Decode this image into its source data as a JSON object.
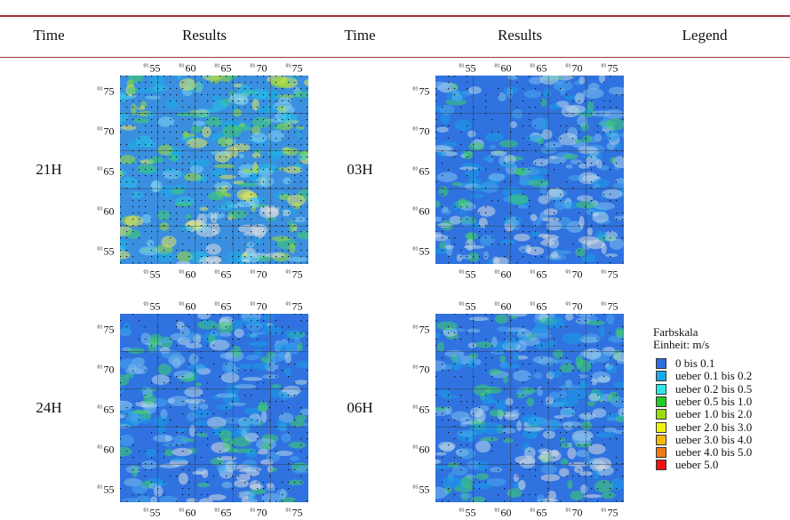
{
  "header": [
    "Time",
    "Results",
    "Time",
    "Results",
    "Legend"
  ],
  "rows": [
    {
      "left_time": "21H",
      "right_time": "03H"
    },
    {
      "left_time": "24H",
      "right_time": "06H"
    }
  ],
  "map_ticks": {
    "prefix": "01",
    "x": [
      "55",
      "60",
      "65",
      "70",
      "75"
    ],
    "y": [
      "75",
      "70",
      "65",
      "60",
      "55"
    ]
  },
  "legend": {
    "title": "Farbskala",
    "unit": "Einheit: m/s",
    "entries": [
      {
        "label": "0 bis 0.1",
        "color": "#2f6fe0"
      },
      {
        "label": "ueber 0.1 bis 0.2",
        "color": "#1aa8e8"
      },
      {
        "label": "ueber 0.2 bis 0.5",
        "color": "#2ee8e8"
      },
      {
        "label": "ueber 0.5 bis 1.0",
        "color": "#22cc22"
      },
      {
        "label": "ueber 1.0 bis 2.0",
        "color": "#99dd11"
      },
      {
        "label": "ueber 2.0 bis 3.0",
        "color": "#f2f211"
      },
      {
        "label": "ueber 3.0 bis 4.0",
        "color": "#f5b800"
      },
      {
        "label": "ueber 4.0 bis 5.0",
        "color": "#f07a10"
      },
      {
        "label": "ueber 5.0",
        "color": "#ee1111"
      }
    ]
  }
}
